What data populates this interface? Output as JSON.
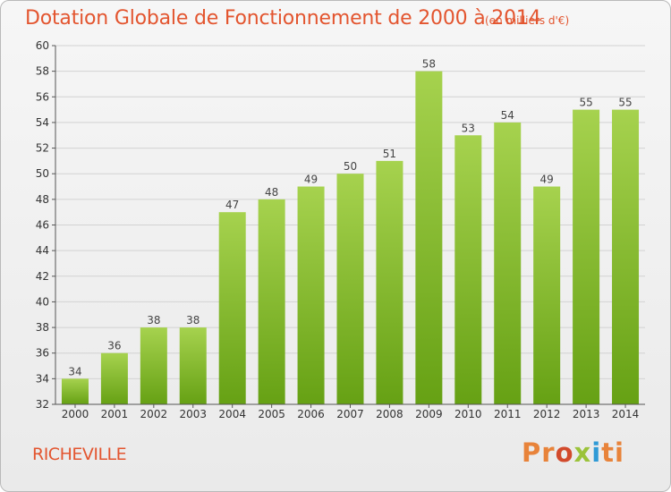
{
  "header": {
    "title": "Dotation Globale de Fonctionnement de 2000 à 2014",
    "unit": "(en milliers d'€)"
  },
  "footer": {
    "commune": "RICHEVILLE",
    "logo": [
      "Pr",
      "o",
      "x",
      "i",
      "ti"
    ]
  },
  "colors": {
    "accent": "#e3552f",
    "bar_light": "#a6d24e",
    "bar_dark": "#66a114",
    "grid": "#d2d2d2",
    "axis": "#555555"
  },
  "chart_data": {
    "type": "bar",
    "title": "Dotation Globale de Fonctionnement de 2000 à 2014",
    "xlabel": "",
    "ylabel": "",
    "categories": [
      "2000",
      "2001",
      "2002",
      "2003",
      "2004",
      "2005",
      "2006",
      "2007",
      "2008",
      "2009",
      "2010",
      "2011",
      "2012",
      "2013",
      "2014"
    ],
    "values": [
      34,
      36,
      38,
      38,
      47,
      48,
      49,
      50,
      51,
      58,
      53,
      54,
      49,
      55,
      55
    ],
    "ylim": [
      32,
      60
    ],
    "yticks": [
      32,
      34,
      36,
      38,
      40,
      42,
      44,
      46,
      48,
      50,
      52,
      54,
      56,
      58,
      60
    ],
    "grid": true,
    "data_labels": true
  }
}
